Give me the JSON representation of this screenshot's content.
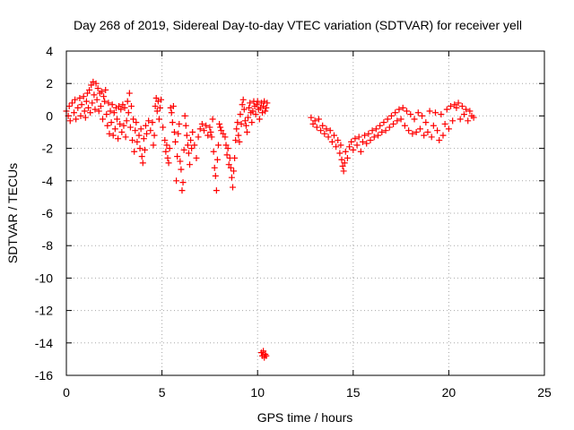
{
  "chart_data": {
    "type": "scatter",
    "title": "Day 268 of 2019, Sidereal Day-to-day VTEC variation (SDTVAR) for receiver yell",
    "xlabel": "GPS time / hours",
    "ylabel": "SDTVAR / TECUs",
    "xlim": [
      0,
      25
    ],
    "ylim": [
      -16,
      4
    ],
    "xticks": [
      "0",
      "5",
      "10",
      "15",
      "20",
      "25"
    ],
    "yticks": [
      "4",
      "2",
      "0",
      "-2",
      "-4",
      "-6",
      "-8",
      "-10",
      "-12",
      "-14",
      "-16"
    ],
    "grid": true,
    "marker": "plus",
    "series": [
      {
        "name": "SDTVAR",
        "color": "#ff0000",
        "points": [
          [
            0.0,
            0.3
          ],
          [
            0.1,
            0.0
          ],
          [
            0.15,
            0.6
          ],
          [
            0.2,
            -0.3
          ],
          [
            0.3,
            0.8
          ],
          [
            0.4,
            0.2
          ],
          [
            0.45,
            1.0
          ],
          [
            0.5,
            -0.2
          ],
          [
            0.6,
            0.5
          ],
          [
            0.7,
            1.1
          ],
          [
            0.75,
            0.0
          ],
          [
            0.8,
            0.7
          ],
          [
            0.9,
            1.2
          ],
          [
            0.95,
            0.3
          ],
          [
            1.0,
            -0.1
          ],
          [
            1.05,
            0.9
          ],
          [
            1.1,
            1.4
          ],
          [
            1.15,
            0.5
          ],
          [
            1.2,
            1.6
          ],
          [
            1.25,
            0.2
          ],
          [
            1.3,
            1.9
          ],
          [
            1.35,
            0.8
          ],
          [
            1.4,
            2.1
          ],
          [
            1.45,
            1.3
          ],
          [
            1.5,
            0.4
          ],
          [
            1.55,
            2.0
          ],
          [
            1.6,
            1.0
          ],
          [
            1.65,
            1.7
          ],
          [
            1.7,
            0.3
          ],
          [
            1.75,
            1.4
          ],
          [
            1.8,
            0.6
          ],
          [
            1.85,
            1.5
          ],
          [
            1.9,
            -0.2
          ],
          [
            1.95,
            1.2
          ],
          [
            2.0,
            0.9
          ],
          [
            2.05,
            1.6
          ],
          [
            2.1,
            0.1
          ],
          [
            2.15,
            -0.6
          ],
          [
            2.2,
            0.8
          ],
          [
            2.25,
            -1.1
          ],
          [
            2.3,
            0.3
          ],
          [
            2.35,
            -0.4
          ],
          [
            2.4,
            0.7
          ],
          [
            2.45,
            -1.2
          ],
          [
            2.5,
            0.2
          ],
          [
            2.55,
            -0.8
          ],
          [
            2.6,
            0.5
          ],
          [
            2.65,
            -0.2
          ],
          [
            2.7,
            -1.4
          ],
          [
            2.75,
            0.6
          ],
          [
            2.8,
            -0.5
          ],
          [
            2.85,
            0.4
          ],
          [
            2.9,
            -1.0
          ],
          [
            2.95,
            0.7
          ],
          [
            3.0,
            -0.6
          ],
          [
            3.05,
            0.5
          ],
          [
            3.1,
            -1.3
          ],
          [
            3.15,
            -0.3
          ],
          [
            3.2,
            0.9
          ],
          [
            3.25,
            0.2
          ],
          [
            3.3,
            1.4
          ],
          [
            3.35,
            -0.7
          ],
          [
            3.4,
            0.6
          ],
          [
            3.45,
            -1.5
          ],
          [
            3.5,
            -0.2
          ],
          [
            3.55,
            -2.2
          ],
          [
            3.6,
            -0.9
          ],
          [
            3.65,
            -0.4
          ],
          [
            3.7,
            -1.6
          ],
          [
            3.8,
            -1.2
          ],
          [
            3.85,
            -2.0
          ],
          [
            3.9,
            -0.8
          ],
          [
            3.95,
            -2.5
          ],
          [
            4.0,
            -2.9
          ],
          [
            4.05,
            -1.4
          ],
          [
            4.1,
            -2.1
          ],
          [
            4.15,
            -0.6
          ],
          [
            4.2,
            -1.1
          ],
          [
            4.3,
            -0.3
          ],
          [
            4.4,
            -0.9
          ],
          [
            4.5,
            -0.4
          ],
          [
            4.55,
            -1.8
          ],
          [
            4.6,
            -1.2
          ],
          [
            4.65,
            0.6
          ],
          [
            4.7,
            1.1
          ],
          [
            4.75,
            0.3
          ],
          [
            4.8,
            0.9
          ],
          [
            4.85,
            -0.2
          ],
          [
            4.9,
            0.5
          ],
          [
            4.95,
            1.0
          ],
          [
            5.05,
            -0.7
          ],
          [
            5.15,
            -1.5
          ],
          [
            5.2,
            -2.2
          ],
          [
            5.25,
            -1.8
          ],
          [
            5.3,
            -2.6
          ],
          [
            5.35,
            -2.9
          ],
          [
            5.4,
            -2.0
          ],
          [
            5.45,
            0.5
          ],
          [
            5.5,
            0.2
          ],
          [
            5.55,
            -0.4
          ],
          [
            5.6,
            0.6
          ],
          [
            5.65,
            -1.0
          ],
          [
            5.7,
            -1.6
          ],
          [
            5.75,
            -4.0
          ],
          [
            5.8,
            -2.5
          ],
          [
            5.85,
            -1.1
          ],
          [
            5.9,
            -0.5
          ],
          [
            5.95,
            -2.8
          ],
          [
            6.0,
            -3.3
          ],
          [
            6.05,
            -4.6
          ],
          [
            6.1,
            -4.1
          ],
          [
            6.15,
            -2.1
          ],
          [
            6.2,
            0.0
          ],
          [
            6.25,
            -0.6
          ],
          [
            6.3,
            -1.2
          ],
          [
            6.35,
            -1.8
          ],
          [
            6.4,
            -2.3
          ],
          [
            6.45,
            -3.0
          ],
          [
            6.5,
            -1.5
          ],
          [
            6.55,
            -2.0
          ],
          [
            6.6,
            -1.0
          ],
          [
            6.7,
            -1.8
          ],
          [
            6.8,
            -2.6
          ],
          [
            6.9,
            -1.3
          ],
          [
            7.0,
            -0.8
          ],
          [
            7.1,
            -0.5
          ],
          [
            7.2,
            -0.9
          ],
          [
            7.3,
            -0.6
          ],
          [
            7.4,
            -1.2
          ],
          [
            7.5,
            -0.7
          ],
          [
            7.55,
            -1.0
          ],
          [
            7.6,
            -1.3
          ],
          [
            7.65,
            -0.2
          ],
          [
            7.7,
            -2.2
          ],
          [
            7.75,
            -3.2
          ],
          [
            7.8,
            -3.7
          ],
          [
            7.85,
            -4.6
          ],
          [
            7.9,
            -2.7
          ],
          [
            7.95,
            -1.8
          ],
          [
            8.0,
            -0.5
          ],
          [
            8.05,
            -0.7
          ],
          [
            8.1,
            -0.9
          ],
          [
            8.2,
            -1.1
          ],
          [
            8.3,
            -1.3
          ],
          [
            8.35,
            -1.8
          ],
          [
            8.4,
            -2.4
          ],
          [
            8.45,
            -2.0
          ],
          [
            8.5,
            -3.0
          ],
          [
            8.55,
            -2.6
          ],
          [
            8.6,
            -3.2
          ],
          [
            8.65,
            -3.8
          ],
          [
            8.7,
            -4.4
          ],
          [
            8.75,
            -3.4
          ],
          [
            8.8,
            -2.6
          ],
          [
            8.85,
            -1.5
          ],
          [
            8.9,
            -0.8
          ],
          [
            8.95,
            -0.4
          ],
          [
            9.0,
            -1.2
          ],
          [
            9.05,
            -1.6
          ],
          [
            9.1,
            0.1
          ],
          [
            9.15,
            -0.5
          ],
          [
            9.2,
            0.7
          ],
          [
            9.25,
            1.0
          ],
          [
            9.3,
            0.4
          ],
          [
            9.35,
            -0.3
          ],
          [
            9.4,
            -0.6
          ],
          [
            9.45,
            -1.0
          ],
          [
            9.5,
            -0.1
          ],
          [
            9.55,
            0.5
          ],
          [
            9.6,
            0.8
          ],
          [
            9.65,
            0.2
          ],
          [
            9.7,
            -0.4
          ],
          [
            9.75,
            0.3
          ],
          [
            9.8,
            0.9
          ],
          [
            9.85,
            0.6
          ],
          [
            9.9,
            0.1
          ],
          [
            9.95,
            0.7
          ],
          [
            10.0,
            0.9
          ],
          [
            10.05,
            0.4
          ],
          [
            10.1,
            -0.2
          ],
          [
            10.15,
            0.5
          ],
          [
            10.2,
            0.8
          ],
          [
            10.25,
            0.2
          ],
          [
            10.3,
            0.6
          ],
          [
            10.35,
            0.9
          ],
          [
            10.4,
            0.3
          ],
          [
            10.45,
            0.5
          ],
          [
            10.5,
            0.8
          ],
          [
            10.2,
            -14.6
          ],
          [
            10.25,
            -14.8
          ],
          [
            10.3,
            -14.5
          ],
          [
            10.35,
            -14.9
          ],
          [
            10.4,
            -14.7
          ],
          [
            10.45,
            -14.8
          ],
          [
            12.8,
            -0.1
          ],
          [
            12.9,
            -0.5
          ],
          [
            13.0,
            -0.3
          ],
          [
            13.1,
            -0.7
          ],
          [
            13.2,
            -0.2
          ],
          [
            13.3,
            -0.9
          ],
          [
            13.4,
            -0.6
          ],
          [
            13.5,
            -1.1
          ],
          [
            13.6,
            -0.8
          ],
          [
            13.7,
            -1.3
          ],
          [
            13.8,
            -0.9
          ],
          [
            13.9,
            -1.6
          ],
          [
            14.0,
            -1.2
          ],
          [
            14.1,
            -1.9
          ],
          [
            14.2,
            -1.5
          ],
          [
            14.3,
            -2.3
          ],
          [
            14.35,
            -1.8
          ],
          [
            14.4,
            -2.7
          ],
          [
            14.45,
            -3.1
          ],
          [
            14.5,
            -3.4
          ],
          [
            14.55,
            -2.9
          ],
          [
            14.6,
            -2.2
          ],
          [
            14.7,
            -2.6
          ],
          [
            14.8,
            -1.9
          ],
          [
            14.9,
            -1.6
          ],
          [
            15.0,
            -2.1
          ],
          [
            15.1,
            -1.4
          ],
          [
            15.2,
            -1.8
          ],
          [
            15.3,
            -1.3
          ],
          [
            15.4,
            -2.2
          ],
          [
            15.5,
            -1.6
          ],
          [
            15.6,
            -1.2
          ],
          [
            15.7,
            -1.7
          ],
          [
            15.8,
            -1.1
          ],
          [
            15.9,
            -1.5
          ],
          [
            16.0,
            -0.9
          ],
          [
            16.1,
            -1.3
          ],
          [
            16.2,
            -0.8
          ],
          [
            16.3,
            -1.2
          ],
          [
            16.4,
            -0.6
          ],
          [
            16.5,
            -1.0
          ],
          [
            16.6,
            -0.4
          ],
          [
            16.7,
            -0.9
          ],
          [
            16.8,
            -0.2
          ],
          [
            16.9,
            -0.7
          ],
          [
            17.0,
            0.0
          ],
          [
            17.1,
            -0.5
          ],
          [
            17.2,
            0.2
          ],
          [
            17.3,
            -0.3
          ],
          [
            17.4,
            0.4
          ],
          [
            17.5,
            -0.2
          ],
          [
            17.6,
            0.5
          ],
          [
            17.7,
            -0.6
          ],
          [
            17.8,
            0.3
          ],
          [
            17.9,
            -0.9
          ],
          [
            18.0,
            0.1
          ],
          [
            18.1,
            -1.1
          ],
          [
            18.2,
            -0.2
          ],
          [
            18.3,
            -1.0
          ],
          [
            18.4,
            0.2
          ],
          [
            18.5,
            -0.8
          ],
          [
            18.6,
            0.0
          ],
          [
            18.7,
            -1.2
          ],
          [
            18.8,
            -0.4
          ],
          [
            18.9,
            -1.0
          ],
          [
            19.0,
            0.3
          ],
          [
            19.1,
            -1.3
          ],
          [
            19.2,
            -0.6
          ],
          [
            19.3,
            0.2
          ],
          [
            19.4,
            -0.9
          ],
          [
            19.5,
            -1.5
          ],
          [
            19.6,
            0.1
          ],
          [
            19.7,
            -1.2
          ],
          [
            19.8,
            -0.5
          ],
          [
            19.9,
            0.4
          ],
          [
            20.0,
            -0.8
          ],
          [
            20.1,
            0.6
          ],
          [
            20.2,
            -0.3
          ],
          [
            20.3,
            0.7
          ],
          [
            20.4,
            0.5
          ],
          [
            20.5,
            0.8
          ],
          [
            20.6,
            -0.2
          ],
          [
            20.7,
            0.6
          ],
          [
            20.8,
            0.1
          ],
          [
            20.9,
            0.4
          ],
          [
            21.0,
            -0.3
          ],
          [
            21.1,
            0.3
          ],
          [
            21.2,
            0.0
          ],
          [
            21.3,
            -0.1
          ]
        ]
      }
    ]
  }
}
